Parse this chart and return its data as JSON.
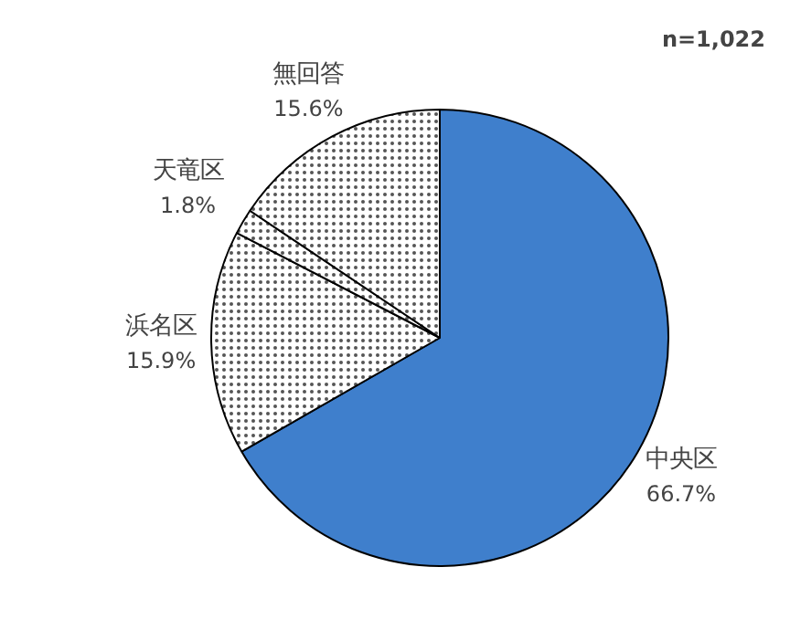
{
  "chart_data": {
    "type": "pie",
    "categories": [
      "中央区",
      "浜名区",
      "天竜区",
      "無回答"
    ],
    "values": [
      66.7,
      15.9,
      1.8,
      15.6
    ],
    "colors": [
      "#3f7fcc",
      "#ffffff",
      "#ffffff",
      "#ffffff"
    ],
    "value_labels": [
      "66.7%",
      "15.9%",
      "1.8%",
      "15.6%"
    ],
    "annotations": [
      "n=1,022"
    ]
  }
}
